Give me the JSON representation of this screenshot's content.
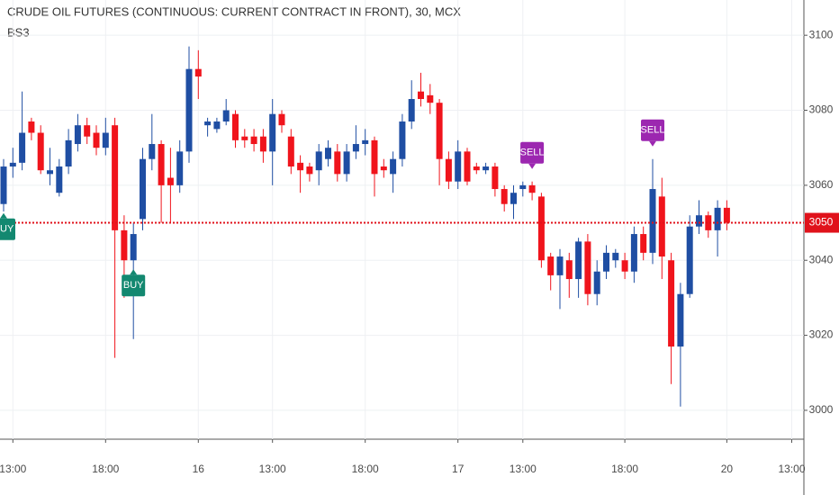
{
  "chart_data": {
    "type": "candlestick",
    "title": "CRUDE OIL FUTURES (CONTINUOUS: CURRENT CONTRACT IN FRONT), 30, MCX",
    "indicator": "BS3",
    "categories": [
      null,
      "13:00",
      null,
      null,
      null,
      null,
      null,
      null,
      null,
      null,
      null,
      "18:00",
      null,
      null,
      null,
      null,
      null,
      null,
      null,
      null,
      null,
      "16",
      null,
      null,
      null,
      null,
      null,
      null,
      null,
      "13:00",
      null,
      null,
      null,
      null,
      null,
      null,
      null,
      null,
      null,
      "18:00",
      null,
      null,
      null,
      null,
      null,
      null,
      null,
      null,
      null,
      "17",
      null,
      null,
      null,
      null,
      null,
      null,
      "13:00",
      null,
      null,
      null,
      null,
      null,
      null,
      null,
      null,
      null,
      null,
      "18:00",
      null,
      null,
      null,
      null,
      null,
      null,
      null,
      null,
      null,
      null,
      "20",
      null,
      null,
      null,
      null,
      null,
      null,
      "13:00"
    ],
    "open": [
      3055,
      3065,
      3066,
      3077,
      3074,
      3063,
      3058,
      3065,
      3071,
      3076,
      3074,
      3070,
      3076,
      3048,
      3040,
      3051,
      3067,
      3071,
      3062,
      3060,
      3069,
      3091,
      3076,
      3075,
      3077,
      3079,
      3073,
      3073,
      3073,
      3069,
      3079,
      3073,
      3066,
      3065,
      3064,
      3067,
      3069,
      3063,
      3069,
      3071,
      3072,
      3065,
      3063,
      3067,
      3077,
      3085,
      3084,
      3082,
      3067,
      3061,
      3069,
      3065,
      3064,
      3065,
      3059,
      3055,
      3059,
      3060,
      3057,
      3041,
      3036,
      3040,
      3035,
      3045,
      3031,
      3037,
      3040,
      3040,
      3037,
      3047,
      3042,
      3057,
      3040,
      3017,
      3031,
      3049,
      3052,
      3048,
      3054,
      null,
      null,
      null,
      null,
      null,
      null,
      null
    ],
    "high": [
      3067,
      3070,
      3085,
      3078,
      3076,
      3070,
      3067,
      3075,
      3079,
      3078,
      3076,
      3078,
      3078,
      3052,
      3050,
      3070,
      3079,
      3072,
      3070,
      3072,
      3097,
      3096,
      3078,
      3078,
      3083,
      3080,
      3075,
      3075,
      3075,
      3083,
      3080,
      3075,
      3068,
      3066,
      3071,
      3072,
      3071,
      3071,
      3076,
      3075,
      3073,
      3067,
      3069,
      3079,
      3088,
      3090,
      3087,
      3083,
      3069,
      3072,
      3070,
      3066,
      3066,
      3066,
      3060,
      3060,
      3061,
      3061,
      3058,
      3042,
      3043,
      3042,
      3046,
      3047,
      3040,
      3044,
      3043,
      3042,
      3049,
      3049,
      3067,
      3062,
      3042,
      3034,
      3052,
      3056,
      3053,
      3056,
      3056,
      null,
      null,
      null,
      null,
      null,
      null,
      null
    ],
    "low": [
      3053,
      3062,
      3064,
      3072,
      3063,
      3060,
      3057,
      3063,
      3069,
      3071,
      3068,
      3068,
      3014,
      3030,
      3019,
      3048,
      3064,
      3050,
      3050,
      3058,
      3066,
      3083,
      3073,
      3074,
      3076,
      3070,
      3070,
      3069,
      3066,
      3060,
      3074,
      3063,
      3058,
      3061,
      3060,
      3065,
      3061,
      3061,
      3067,
      3068,
      3057,
      3062,
      3058,
      3065,
      3075,
      3081,
      3079,
      3060,
      3059,
      3059,
      3060,
      3063,
      3063,
      3057,
      3053,
      3051,
      3057,
      3056,
      3038,
      3032,
      3027,
      3030,
      3030,
      3028,
      3028,
      3035,
      3038,
      3035,
      3034,
      3040,
      3039,
      3035,
      3007,
      3001,
      3030,
      3047,
      3046,
      3041,
      3048,
      null,
      null,
      null,
      null,
      null,
      null,
      null
    ],
    "close": [
      3065,
      3066,
      3074,
      3074,
      3064,
      3064,
      3065,
      3072,
      3076,
      3073,
      3070,
      3074,
      3048,
      3040,
      3047,
      3067,
      3071,
      3060,
      3060,
      3069,
      3091,
      3089,
      3077,
      3077,
      3080,
      3072,
      3072,
      3071,
      3069,
      3079,
      3076,
      3065,
      3064,
      3063,
      3069,
      3070,
      3063,
      3069,
      3071,
      3072,
      3063,
      3064,
      3067,
      3077,
      3083,
      3083,
      3082,
      3067,
      3061,
      3069,
      3061,
      3064,
      3065,
      3059,
      3055,
      3058,
      3060,
      3058,
      3040,
      3036,
      3041,
      3035,
      3045,
      3031,
      3037,
      3042,
      3042,
      3037,
      3047,
      3042,
      3059,
      3041,
      3017,
      3031,
      3049,
      3052,
      3048,
      3054,
      3050,
      null,
      null,
      null,
      null,
      null,
      null,
      null
    ],
    "signals": [
      "BUY",
      null,
      null,
      null,
      null,
      null,
      null,
      null,
      null,
      null,
      null,
      null,
      null,
      null,
      "BUY",
      null,
      null,
      null,
      null,
      null,
      null,
      null,
      null,
      null,
      null,
      null,
      null,
      null,
      null,
      null,
      null,
      null,
      null,
      null,
      null,
      null,
      null,
      null,
      null,
      null,
      null,
      null,
      null,
      null,
      null,
      null,
      null,
      null,
      null,
      null,
      null,
      null,
      null,
      null,
      null,
      null,
      null,
      "SELL",
      null,
      null,
      null,
      null,
      null,
      null,
      null,
      null,
      null,
      null,
      null,
      null,
      "SELL",
      null,
      null,
      null,
      null,
      null,
      null,
      null,
      null,
      null,
      null,
      null,
      null,
      null,
      null,
      null
    ],
    "up_color": "#1f4ea3",
    "down_color": "#f0141c",
    "buy_color": "#138870",
    "sell_color": "#9c27b0",
    "last_price": 3050,
    "last_price_color": "#e0121b",
    "ylim": [
      2992.3,
      3109.4
    ],
    "yticks": [
      3000,
      3020,
      3040,
      3060,
      3080,
      3100
    ],
    "grid": true
  }
}
